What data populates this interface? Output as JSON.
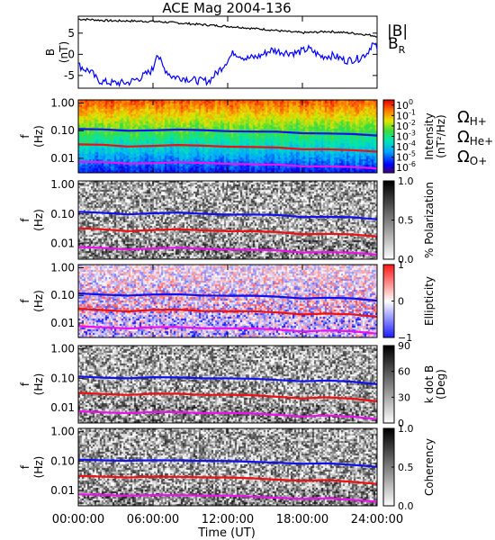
{
  "chart_data": {
    "title": "ACE Mag 2004-136",
    "x": {
      "label": "Time (UT)",
      "ticks": [
        "00:00:00",
        "06:00:00",
        "12:00:00",
        "18:00:00",
        "24:00:00"
      ],
      "range_hours": [
        0,
        24
      ]
    },
    "panel_b": {
      "type": "line",
      "ylabel": "B",
      "yunit": "(nT)",
      "ylim": [
        -8,
        9
      ],
      "yticks": [
        "5",
        "0",
        "-5"
      ],
      "series": [
        {
          "name": "|B|",
          "color": "#000000",
          "x": [
            0,
            1,
            2,
            3,
            4,
            5,
            6,
            7,
            8,
            9,
            10,
            11,
            12,
            13,
            14,
            15,
            16,
            17,
            18,
            19,
            20,
            21,
            22,
            23,
            24
          ],
          "y": [
            8.3,
            8.2,
            8.0,
            7.9,
            7.9,
            7.8,
            7.8,
            7.6,
            7.4,
            7.2,
            7.0,
            6.8,
            6.6,
            6.4,
            6.1,
            5.9,
            5.6,
            5.3,
            5.1,
            5.2,
            5.4,
            5.2,
            5.0,
            4.7,
            4.3
          ]
        },
        {
          "name": "B",
          "subscript": "R",
          "color": "#0000ff",
          "x": [
            0,
            0.5,
            1,
            1.5,
            2,
            3,
            4,
            5,
            5.8,
            6,
            6.3,
            6.8,
            7.5,
            8.5,
            9.5,
            10.5,
            11.5,
            12.5,
            13.5,
            14.5,
            15.5,
            16.5,
            17.5,
            18.5,
            19.5,
            20.5,
            21.5,
            22.5,
            23.2,
            23.6,
            24
          ],
          "y": [
            -2.5,
            -3.5,
            -4,
            -6,
            -6.5,
            -6.8,
            -6.7,
            -5.5,
            -4,
            -3.5,
            0.5,
            -3,
            -5.2,
            -5.6,
            -6.2,
            -6.3,
            -3.2,
            0.5,
            -1,
            -0.5,
            1,
            0.5,
            0.3,
            1.3,
            -0.5,
            -0.3,
            -1.5,
            -1,
            0.3,
            2.5,
            1.5
          ]
        }
      ]
    },
    "freq_axis": {
      "label": "f",
      "unit": "(Hz)",
      "ticks": [
        "1.00",
        "0.10",
        "0.01"
      ],
      "log_range": [
        0.003,
        1.3
      ]
    },
    "gyro_lines": {
      "x": [
        0,
        2,
        4,
        6,
        8,
        10,
        12,
        14,
        16,
        18,
        20,
        22,
        24
      ],
      "H+": [
        0.115,
        0.108,
        0.1,
        0.106,
        0.108,
        0.102,
        0.098,
        0.095,
        0.09,
        0.08,
        0.082,
        0.076,
        0.065
      ],
      "He+": [
        0.032,
        0.03,
        0.027,
        0.029,
        0.03,
        0.028,
        0.027,
        0.026,
        0.024,
        0.021,
        0.022,
        0.02,
        0.017
      ],
      "O+": [
        0.0075,
        0.0071,
        0.0065,
        0.0069,
        0.0071,
        0.0067,
        0.0065,
        0.0062,
        0.0058,
        0.0051,
        0.0053,
        0.0049,
        0.0042
      ]
    },
    "gyro_legend": [
      {
        "symbol": "Ω",
        "sub": "H+",
        "color": "#2222ee"
      },
      {
        "symbol": "Ω",
        "sub": "He+",
        "color": "#ee1111"
      },
      {
        "symbol": "Ω",
        "sub": "O+",
        "color": "#ee11ee"
      }
    ],
    "spectrograms": [
      {
        "type": "heatmap",
        "style": "rainbow",
        "colorbar_label": "Intensity",
        "colorbar_unit": "(nT²/Hz)",
        "colorbar_ticks": [
          {
            "base": "10",
            "exp": "0"
          },
          {
            "base": "10",
            "exp": "-1"
          },
          {
            "base": "10",
            "exp": "-2"
          },
          {
            "base": "10",
            "exp": "-3"
          },
          {
            "base": "10",
            "exp": "-4"
          },
          {
            "base": "10",
            "exp": "-5"
          },
          {
            "base": "10",
            "exp": "-6"
          }
        ],
        "colorbar_range": [
          -6.5,
          0.5
        ]
      },
      {
        "type": "heatmap",
        "style": "gray",
        "colorbar_label": "% Polarization",
        "colorbar_ticks": [
          "1.0",
          "0.5",
          "0.0"
        ],
        "colorbar_range": [
          0,
          1
        ]
      },
      {
        "type": "heatmap",
        "style": "diverging",
        "colorbar_label": "Ellipticity",
        "colorbar_ticks": [
          "1",
          "0",
          "−1"
        ],
        "colorbar_range": [
          -1,
          1
        ]
      },
      {
        "type": "heatmap",
        "style": "gray",
        "colorbar_label": "k dot B",
        "colorbar_unit": "(Deg)",
        "colorbar_ticks": [
          "90",
          "60",
          "30",
          "0"
        ],
        "colorbar_range": [
          0,
          90
        ]
      },
      {
        "type": "heatmap",
        "style": "gray",
        "colorbar_label": "Coherency",
        "colorbar_ticks": [
          "1.0",
          "0.5",
          "0.0"
        ],
        "colorbar_range": [
          0,
          1
        ]
      }
    ]
  }
}
